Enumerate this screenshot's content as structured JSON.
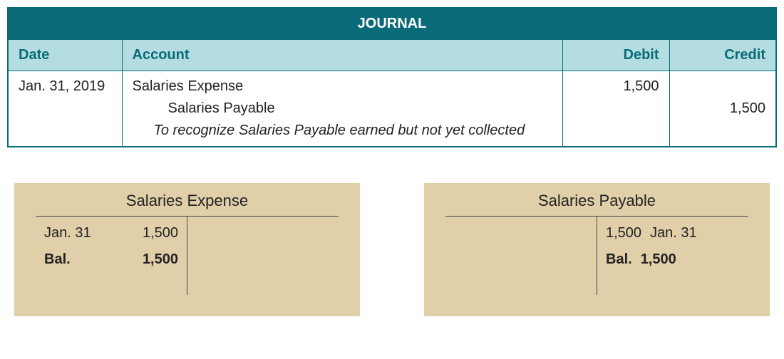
{
  "journal": {
    "title": "JOURNAL",
    "headers": {
      "date": "Date",
      "account": "Account",
      "debit": "Debit",
      "credit": "Credit"
    },
    "entry": {
      "date": "Jan. 31, 2019",
      "line1_account": "Salaries Expense",
      "line1_debit": "1,500",
      "line1_credit": "",
      "line2_account": "Salaries Payable",
      "line2_debit": "",
      "line2_credit": "1,500",
      "memo": "To recognize Salaries Payable earned but not yet collected"
    }
  },
  "taccounts": {
    "left": {
      "title": "Salaries Expense",
      "debit_date": "Jan. 31",
      "debit_amount": "1,500",
      "balance_label": "Bal.",
      "balance_amount": "1,500"
    },
    "right": {
      "title": "Salaries Payable",
      "credit_amount": "1,500",
      "credit_date": "Jan. 31",
      "balance_label": "Bal.",
      "balance_amount": "1,500"
    }
  },
  "style": {
    "header_bg": "#0a6b78",
    "header_row_bg": "#b3dde0",
    "border_color": "#0a6b78",
    "taccount_bg": "#e0cfa8",
    "text_color": "#222222",
    "title_fontsize": 20,
    "body_fontsize": 20
  }
}
